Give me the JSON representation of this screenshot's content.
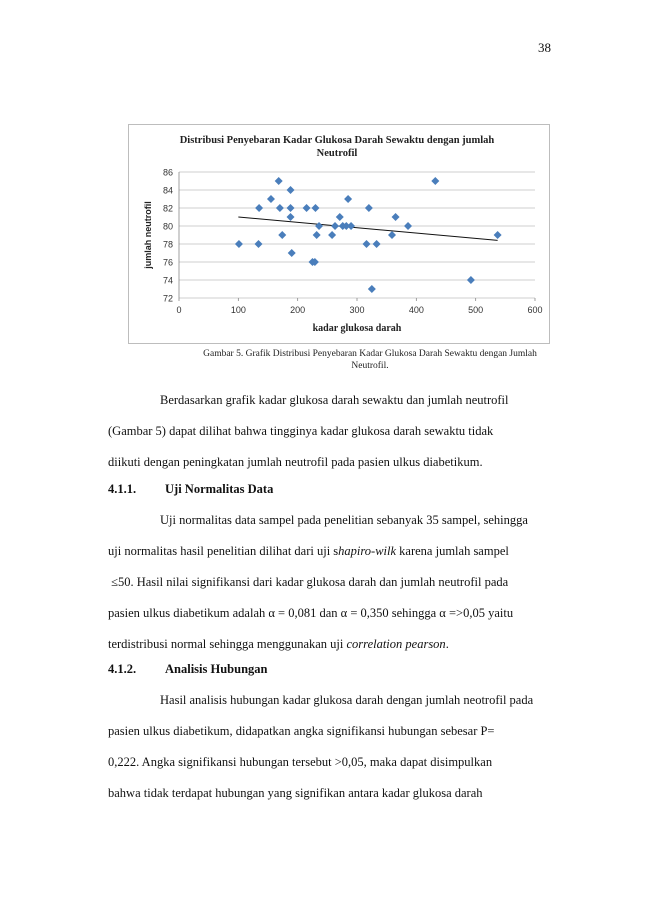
{
  "page_number": "38",
  "chart_data": {
    "type": "scatter",
    "title": "Distribusi Penyebaran Kadar Glukosa Darah Sewaktu dengan jumlah Neutrofil",
    "title_lines": [
      "Distribusi Penyebaran Kadar Glukosa Darah Sewaktu dengan jumlah",
      "Neutrofil"
    ],
    "xlabel": "kadar glukosa darah",
    "ylabel": "jumlah neutrofil",
    "xlim": [
      0,
      600
    ],
    "ylim": [
      72,
      86
    ],
    "xticks": [
      0,
      100,
      200,
      300,
      400,
      500,
      600
    ],
    "yticks": [
      72,
      74,
      76,
      78,
      80,
      82,
      84,
      86
    ],
    "grid": "horizontal",
    "marker_color": "#4a7ebb",
    "trendline": {
      "x": [
        100,
        537
      ],
      "y": [
        81.0,
        78.4
      ]
    },
    "points": [
      [
        101,
        78
      ],
      [
        134,
        78
      ],
      [
        135,
        82
      ],
      [
        155,
        83
      ],
      [
        168,
        85
      ],
      [
        170,
        82
      ],
      [
        174,
        79
      ],
      [
        188,
        84
      ],
      [
        188,
        82
      ],
      [
        188,
        81
      ],
      [
        190,
        77
      ],
      [
        215,
        82
      ],
      [
        225,
        76
      ],
      [
        229,
        76
      ],
      [
        230,
        82
      ],
      [
        232,
        79
      ],
      [
        236,
        80
      ],
      [
        258,
        79
      ],
      [
        263,
        80
      ],
      [
        271,
        81
      ],
      [
        276,
        80
      ],
      [
        282,
        80
      ],
      [
        285,
        83
      ],
      [
        290,
        80
      ],
      [
        316,
        78
      ],
      [
        320,
        82
      ],
      [
        325,
        73
      ],
      [
        333,
        78
      ],
      [
        359,
        79
      ],
      [
        365,
        81
      ],
      [
        386,
        80
      ],
      [
        432,
        85
      ],
      [
        492,
        74
      ],
      [
        537,
        79
      ]
    ]
  },
  "caption": {
    "line1": "Gambar 5. Grafik Distribusi Penyebaran Kadar Glukosa Darah Sewaktu dengan Jumlah",
    "line2": "Neutrofil."
  },
  "paragraph1": {
    "line1": "Berdasarkan grafik kadar glukosa darah sewaktu dan jumlah neutrofil",
    "line2": "(Gambar 5) dapat dilihat bahwa tingginya kadar glukosa darah sewaktu tidak",
    "line3": "diikuti dengan peningkatan jumlah neutrofil pada pasien ulkus diabetikum."
  },
  "heading1": {
    "number": "4.1.1.",
    "title": "Uji Normalitas Data"
  },
  "paragraph2": {
    "line1": "Uji normalitas data sampel pada penelitian sebanyak 35 sampel, sehingga",
    "line2_a": "uji normalitas hasil penelitian dilihat dari uji s",
    "line2_italic": "hapiro-wilk",
    "line2_b": " karena jumlah sampel",
    "line3": "≤50. Hasil nilai signifikansi dari kadar glukosa darah dan jumlah neutrofil pada",
    "line4": "pasien ulkus diabetikum adalah α = 0,081 dan α = 0,350 sehingga α =>0,05 yaitu",
    "line5_a": "terdistribusi normal sehingga menggunakan uji ",
    "line5_italic": "correlation pearson",
    "line5_b": "."
  },
  "heading2": {
    "number": "4.1.2.",
    "title": "Analisis Hubungan"
  },
  "paragraph3": {
    "line1": "Hasil analisis hubungan kadar glukosa darah dengan jumlah neotrofil pada",
    "line2": "pasien ulkus diabetikum, didapatkan angka signifikansi hubungan sebesar P=",
    "line3": "0,222. Angka signifikansi hubungan tersebut >0,05, maka dapat disimpulkan",
    "line4": "bahwa tidak terdapat hubungan yang signifikan antara kadar glukosa darah"
  }
}
